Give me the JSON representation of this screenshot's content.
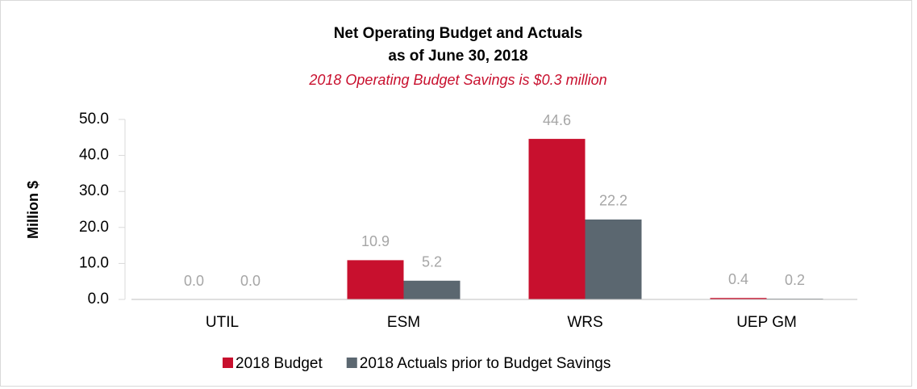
{
  "chart_data": {
    "type": "bar",
    "title": [
      "Net Operating Budget and Actuals",
      "as of June 30, 2018"
    ],
    "subtitle": "2018 Operating Budget Savings is $0.3 million",
    "y_label": "Million $",
    "categories": [
      "UTIL",
      "ESM",
      "WRS",
      "UEP GM"
    ],
    "series": [
      {
        "name": "2018 Budget",
        "color": "#c8102e",
        "values": [
          0,
          10.9,
          44.6,
          0.4
        ],
        "value_labels": [
          "0.0",
          "10.9",
          "44.6",
          "0.4"
        ]
      },
      {
        "name": "2018 Actuals prior to Budget Savings",
        "color": "#5b6770",
        "values": [
          0,
          5.2,
          22.2,
          0.2
        ],
        "value_labels": [
          "0.0",
          "5.2",
          "22.2",
          "0.2"
        ]
      }
    ],
    "ylim": [
      0,
      50
    ],
    "yticks": [
      {
        "value": 0,
        "label": "0.0"
      },
      {
        "value": 10,
        "label": "10.0"
      },
      {
        "value": 20,
        "label": "20.0"
      },
      {
        "value": 30,
        "label": "30.0"
      },
      {
        "value": 40,
        "label": "40.0"
      },
      {
        "value": 50,
        "label": "50.0"
      }
    ],
    "legend": "bottom"
  }
}
